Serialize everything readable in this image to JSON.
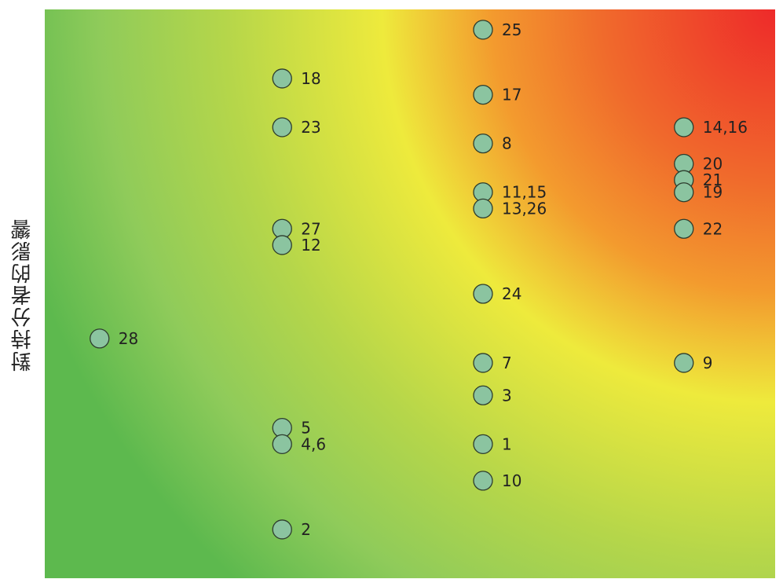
{
  "chart_data": {
    "type": "scatter",
    "title": "",
    "xlabel": "",
    "ylabel": "對持分者的影響",
    "xlim": [
      0,
      4
    ],
    "ylim": [
      0,
      7
    ],
    "grid": false,
    "background": "heatmap gradient green (low) to yellow to red (top-right)",
    "colors": {
      "marker_fill": "#8bc4a0",
      "marker_stroke": "#2e3d2e",
      "green": "#5db94e",
      "yellow": "#eeea3c",
      "orange": "#f39a2e",
      "red": "#ee2a2a"
    },
    "points": [
      {
        "label": "25",
        "x": 2.4,
        "y": 6.75
      },
      {
        "label": "18",
        "x": 1.3,
        "y": 6.15
      },
      {
        "label": "17",
        "x": 2.4,
        "y": 5.95
      },
      {
        "label": "23",
        "x": 1.3,
        "y": 5.55
      },
      {
        "label": "14,16",
        "x": 3.5,
        "y": 5.55
      },
      {
        "label": "8",
        "x": 2.4,
        "y": 5.35
      },
      {
        "label": "20",
        "x": 3.5,
        "y": 5.1
      },
      {
        "label": "21",
        "x": 3.5,
        "y": 4.9
      },
      {
        "label": "11,15",
        "x": 2.4,
        "y": 4.75
      },
      {
        "label": "19",
        "x": 3.5,
        "y": 4.75
      },
      {
        "label": "13,26",
        "x": 2.4,
        "y": 4.55
      },
      {
        "label": "27",
        "x": 1.3,
        "y": 4.3
      },
      {
        "label": "22",
        "x": 3.5,
        "y": 4.3
      },
      {
        "label": "12",
        "x": 1.3,
        "y": 4.1
      },
      {
        "label": "24",
        "x": 2.4,
        "y": 3.5
      },
      {
        "label": "28",
        "x": 0.3,
        "y": 2.95
      },
      {
        "label": "9",
        "x": 3.5,
        "y": 2.65
      },
      {
        "label": "7",
        "x": 2.4,
        "y": 2.65
      },
      {
        "label": "3",
        "x": 2.4,
        "y": 2.25
      },
      {
        "label": "5",
        "x": 1.3,
        "y": 1.85
      },
      {
        "label": "1",
        "x": 2.4,
        "y": 1.65
      },
      {
        "label": "4,6",
        "x": 1.3,
        "y": 1.65
      },
      {
        "label": "10",
        "x": 2.4,
        "y": 1.2
      },
      {
        "label": "2",
        "x": 1.3,
        "y": 0.6
      }
    ]
  }
}
